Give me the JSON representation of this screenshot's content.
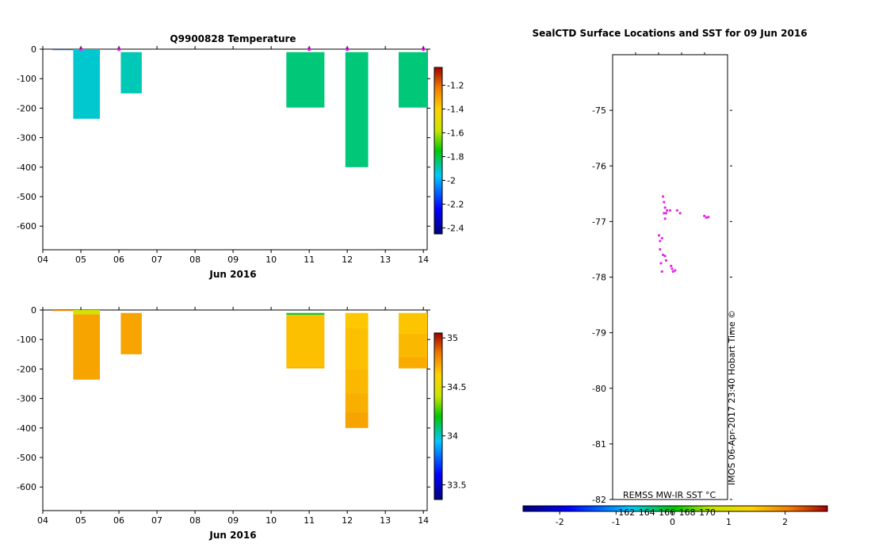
{
  "chart_data": [
    {
      "type": "heatmap",
      "title": "Q9900828  Temperature",
      "xlabel": "Jun 2016",
      "x_ticks": [
        "04",
        "05",
        "06",
        "07",
        "08",
        "09",
        "10",
        "11",
        "12",
        "13",
        "14"
      ],
      "xlim": [
        4,
        14.1
      ],
      "y_ticks": [
        "0",
        "-100",
        "-200",
        "-300",
        "-400",
        "-500",
        "-600"
      ],
      "ylim": [
        -680,
        0
      ],
      "colorbar_ticks": [
        "-1.2",
        "-1.4",
        "-1.6",
        "-1.8",
        "-2",
        "-2.2",
        "-2.4"
      ],
      "colorbar_range": [
        -2.45,
        -1.05
      ],
      "profiles": [
        {
          "x0": 4.25,
          "x1": 4.8,
          "top": 0,
          "bottom": -3,
          "value": -2.1
        },
        {
          "x0": 4.8,
          "x1": 5.5,
          "top": 0,
          "bottom": -236,
          "value": -1.92
        },
        {
          "x0": 6.05,
          "x1": 6.6,
          "top": -10,
          "bottom": -150,
          "value": -1.9
        },
        {
          "x0": 10.4,
          "x1": 11.4,
          "top": -10,
          "bottom": -198,
          "value": -1.85
        },
        {
          "x0": 11.95,
          "x1": 12.55,
          "top": -10,
          "bottom": -400,
          "value": -1.85
        },
        {
          "x0": 13.35,
          "x1": 14.1,
          "top": -10,
          "bottom": -198,
          "value": -1.85
        }
      ],
      "surface_markers_x": [
        5.0,
        6.0,
        11.0,
        12.0,
        14.0
      ]
    },
    {
      "type": "heatmap",
      "title": "",
      "xlabel": "Jun 2016",
      "x_ticks": [
        "04",
        "05",
        "06",
        "07",
        "08",
        "09",
        "10",
        "11",
        "12",
        "13",
        "14"
      ],
      "xlim": [
        4,
        14.1
      ],
      "y_ticks": [
        "0",
        "-100",
        "-200",
        "-300",
        "-400",
        "-500",
        "-600"
      ],
      "ylim": [
        -680,
        0
      ],
      "colorbar_ticks": [
        "35",
        "34.5",
        "34",
        "33.5"
      ],
      "colorbar_range": [
        33.35,
        35.05
      ],
      "profiles": [
        {
          "x0": 4.25,
          "x1": 4.8,
          "top": 0,
          "bottom": -3,
          "value": 34.8
        },
        {
          "x0": 4.8,
          "x1": 5.5,
          "top": 0,
          "bottom": -15,
          "value": 34.45
        },
        {
          "x0": 4.8,
          "x1": 5.5,
          "top": -15,
          "bottom": -236,
          "value": 34.74
        },
        {
          "x0": 6.05,
          "x1": 6.6,
          "top": -10,
          "bottom": -150,
          "value": 34.74
        },
        {
          "x0": 10.4,
          "x1": 11.4,
          "top": -10,
          "bottom": -16,
          "value": 34.15
        },
        {
          "x0": 10.4,
          "x1": 11.4,
          "top": -16,
          "bottom": -190,
          "value": 34.67
        },
        {
          "x0": 10.4,
          "x1": 11.4,
          "top": -190,
          "bottom": -198,
          "value": 34.7
        },
        {
          "x0": 11.95,
          "x1": 12.55,
          "top": -10,
          "bottom": -60,
          "value": 34.65
        },
        {
          "x0": 11.95,
          "x1": 12.55,
          "top": -60,
          "bottom": -200,
          "value": 34.67
        },
        {
          "x0": 11.95,
          "x1": 12.55,
          "top": -200,
          "bottom": -280,
          "value": 34.69
        },
        {
          "x0": 11.95,
          "x1": 12.55,
          "top": -280,
          "bottom": -345,
          "value": 34.71
        },
        {
          "x0": 11.95,
          "x1": 12.55,
          "top": -345,
          "bottom": -400,
          "value": 34.74
        },
        {
          "x0": 13.35,
          "x1": 14.1,
          "top": -10,
          "bottom": -80,
          "value": 34.66
        },
        {
          "x0": 13.35,
          "x1": 14.1,
          "top": -80,
          "bottom": -160,
          "value": 34.69
        },
        {
          "x0": 13.35,
          "x1": 14.1,
          "top": -160,
          "bottom": -198,
          "value": 34.72
        }
      ]
    },
    {
      "type": "scatter",
      "title": "SealCTD Surface Locations and SST for 09 Jun 2016",
      "y_ticks": [
        "-75",
        "-76",
        "-77",
        "-78",
        "-79",
        "-80",
        "-81",
        "-82"
      ],
      "ylim": [
        -82,
        -74.0
      ],
      "xlim": [
        160.6,
        172.0
      ],
      "source_label": "REMSS MW-IR SST °C",
      "credit": "IMOS 06-Apr-2017 23:40 Hobart Time ©",
      "colorbar_ticks": [
        "-2",
        "-1",
        "0",
        "1",
        "2"
      ],
      "colorbar_range": [
        -2.65,
        2.75
      ],
      "lon_ticks": [
        "162",
        "164",
        "166",
        "168",
        "170"
      ],
      "points": [
        [
          165.6,
          -76.55
        ],
        [
          165.7,
          -76.65
        ],
        [
          165.8,
          -76.75
        ],
        [
          165.7,
          -76.85
        ],
        [
          165.9,
          -76.85
        ],
        [
          166.0,
          -76.8
        ],
        [
          165.8,
          -76.95
        ],
        [
          166.3,
          -76.8
        ],
        [
          167.0,
          -76.8
        ],
        [
          167.3,
          -76.85
        ],
        [
          169.7,
          -76.9
        ],
        [
          169.9,
          -76.93
        ],
        [
          170.1,
          -76.92
        ],
        [
          165.5,
          -77.3
        ],
        [
          165.3,
          -77.35
        ],
        [
          165.2,
          -77.25
        ],
        [
          165.3,
          -77.5
        ],
        [
          165.6,
          -77.6
        ],
        [
          165.8,
          -77.62
        ],
        [
          165.4,
          -77.75
        ],
        [
          165.5,
          -77.9
        ],
        [
          166.5,
          -77.85
        ],
        [
          166.6,
          -77.9
        ],
        [
          166.4,
          -77.8
        ],
        [
          166.8,
          -77.88
        ],
        [
          165.9,
          -77.7
        ]
      ]
    }
  ],
  "colors": {
    "marker": "#e628e6"
  }
}
